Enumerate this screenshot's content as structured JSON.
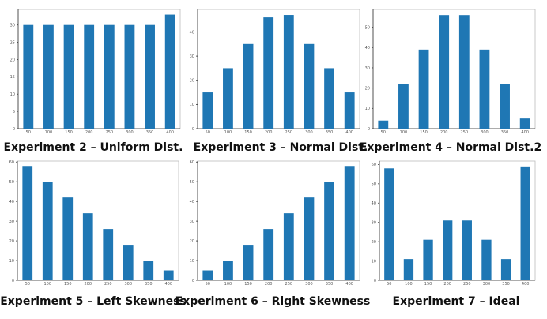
{
  "bar_color": "#1f77b4",
  "chart_data": [
    {
      "type": "bar",
      "title": "Experiment 2 – Uniform Dist.",
      "categories": [
        "50",
        "100",
        "150",
        "200",
        "250",
        "300",
        "350",
        "400"
      ],
      "x": [
        50,
        100,
        150,
        200,
        250,
        300,
        350,
        400
      ],
      "values": [
        30,
        30,
        30,
        30,
        30,
        30,
        30,
        33
      ],
      "ylim": [
        0,
        34.5
      ],
      "yticks": [
        0,
        5,
        10,
        15,
        20,
        25,
        30
      ],
      "xlabel": "",
      "ylabel": ""
    },
    {
      "type": "bar",
      "title": "Experiment 3 – Normal Dist.",
      "categories": [
        "50",
        "100",
        "150",
        "200",
        "250",
        "300",
        "350",
        "400"
      ],
      "x": [
        50,
        100,
        150,
        200,
        250,
        300,
        350,
        400
      ],
      "values": [
        15,
        25,
        35,
        46,
        47,
        35,
        25,
        15
      ],
      "ylim": [
        0,
        49.3
      ],
      "yticks": [
        0,
        10,
        20,
        30,
        40
      ],
      "xlabel": "",
      "ylabel": ""
    },
    {
      "type": "bar",
      "title": "Experiment 4 – Normal Dist.2",
      "categories": [
        "50",
        "100",
        "150",
        "200",
        "250",
        "300",
        "350",
        "400"
      ],
      "x": [
        50,
        100,
        150,
        200,
        250,
        300,
        350,
        400
      ],
      "values": [
        4,
        22,
        39,
        56,
        56,
        39,
        22,
        5
      ],
      "ylim": [
        0,
        58.8
      ],
      "yticks": [
        0,
        10,
        20,
        30,
        40,
        50
      ],
      "xlabel": "",
      "ylabel": ""
    },
    {
      "type": "bar",
      "title": "Experiment 5 – Left Skewness",
      "categories": [
        "50",
        "100",
        "150",
        "200",
        "250",
        "300",
        "350",
        "400"
      ],
      "x": [
        50,
        100,
        150,
        200,
        250,
        300,
        350,
        400
      ],
      "values": [
        58,
        50,
        42,
        34,
        26,
        18,
        10,
        5
      ],
      "ylim": [
        0,
        60.5
      ],
      "yticks": [
        0,
        10,
        20,
        30,
        40,
        50,
        60
      ],
      "xlabel": "",
      "ylabel": ""
    },
    {
      "type": "bar",
      "title": "Experiment 6 – Right Skewness",
      "categories": [
        "50",
        "100",
        "150",
        "200",
        "250",
        "300",
        "350",
        "400"
      ],
      "x": [
        50,
        100,
        150,
        200,
        250,
        300,
        350,
        400
      ],
      "values": [
        5,
        10,
        18,
        26,
        34,
        42,
        50,
        58
      ],
      "ylim": [
        0,
        60.5
      ],
      "yticks": [
        0,
        10,
        20,
        30,
        40,
        50,
        60
      ],
      "xlabel": "",
      "ylabel": ""
    },
    {
      "type": "bar",
      "title": "Experiment 7 – Ideal",
      "categories": [
        "50",
        "100",
        "150",
        "200",
        "250",
        "300",
        "350",
        "400"
      ],
      "x": [
        50,
        100,
        150,
        200,
        250,
        300,
        350,
        400
      ],
      "values": [
        58,
        11,
        21,
        31,
        31,
        21,
        11,
        59
      ],
      "ylim": [
        0,
        61.8
      ],
      "yticks": [
        0,
        10,
        20,
        30,
        40,
        50,
        60
      ],
      "xlabel": "",
      "ylabel": ""
    }
  ]
}
